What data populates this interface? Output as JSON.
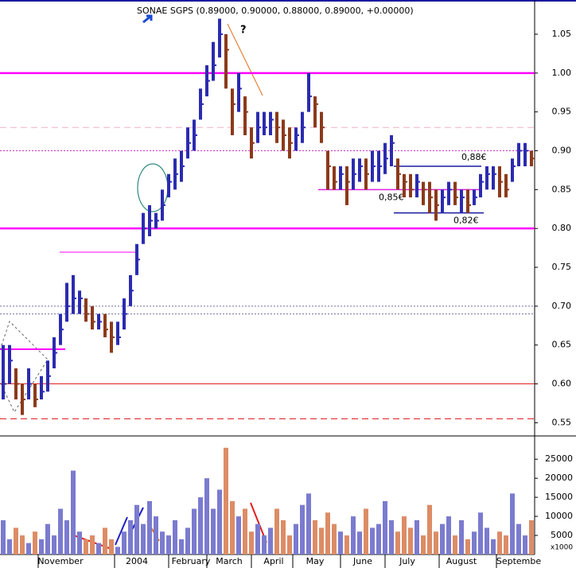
{
  "chart_data": [
    {
      "type": "hlc",
      "title": "SONAE SGPS (0.89000, 0.90000, 0.88000, 0.89000, +0.00000)",
      "ylim": [
        0.533,
        1.094
      ],
      "yticks": [
        0.55,
        0.6,
        0.65,
        0.7,
        0.75,
        0.8,
        0.85,
        0.9,
        0.95,
        1.05,
        {
          "value": 1.0,
          "label": "1.00"
        },
        {
          "value": 0.6,
          "label": "0.60"
        },
        {
          "value": 0.7,
          "label": "0.70"
        },
        {
          "value": 0.8,
          "label": "0.80"
        },
        {
          "value": 0.9,
          "label": "0.90"
        }
      ],
      "up_color": "#2b2bb0",
      "down_color": "#8b3a1a",
      "high": [
        0.65,
        0.65,
        0.62,
        0.6,
        0.62,
        0.6,
        0.61,
        0.63,
        0.66,
        0.69,
        0.73,
        0.74,
        0.72,
        0.71,
        0.7,
        0.69,
        0.69,
        0.68,
        0.68,
        0.71,
        0.74,
        0.78,
        0.82,
        0.83,
        0.82,
        0.85,
        0.87,
        0.89,
        0.9,
        0.93,
        0.94,
        0.98,
        1.01,
        1.04,
        1.07,
        1.05,
        0.98,
        1.0,
        0.97,
        0.93,
        0.95,
        0.95,
        0.95,
        0.95,
        0.94,
        0.93,
        0.93,
        0.95,
        1.0,
        0.97,
        0.95,
        0.9,
        0.88,
        0.88,
        0.88,
        0.89,
        0.89,
        0.89,
        0.9,
        0.9,
        0.91,
        0.92,
        0.89,
        0.87,
        0.87,
        0.87,
        0.86,
        0.86,
        0.85,
        0.85,
        0.86,
        0.86,
        0.85,
        0.85,
        0.85,
        0.87,
        0.88,
        0.88,
        0.88,
        0.87,
        0.89,
        0.91,
        0.91,
        0.9
      ],
      "low": [
        0.58,
        0.6,
        0.58,
        0.56,
        0.58,
        0.57,
        0.58,
        0.59,
        0.62,
        0.65,
        0.68,
        0.69,
        0.69,
        0.68,
        0.67,
        0.67,
        0.66,
        0.64,
        0.65,
        0.67,
        0.7,
        0.74,
        0.78,
        0.79,
        0.8,
        0.81,
        0.84,
        0.85,
        0.86,
        0.89,
        0.9,
        0.94,
        0.97,
        0.99,
        1.02,
        0.98,
        0.92,
        0.95,
        0.92,
        0.89,
        0.91,
        0.92,
        0.92,
        0.91,
        0.9,
        0.89,
        0.9,
        0.91,
        0.95,
        0.93,
        0.91,
        0.85,
        0.85,
        0.85,
        0.83,
        0.85,
        0.86,
        0.85,
        0.86,
        0.86,
        0.87,
        0.88,
        0.85,
        0.84,
        0.84,
        0.84,
        0.83,
        0.82,
        0.81,
        0.82,
        0.83,
        0.83,
        0.82,
        0.82,
        0.83,
        0.84,
        0.85,
        0.85,
        0.84,
        0.84,
        0.86,
        0.88,
        0.88,
        0.88
      ],
      "close": [
        0.6,
        0.63,
        0.6,
        0.58,
        0.6,
        0.58,
        0.59,
        0.61,
        0.64,
        0.67,
        0.7,
        0.71,
        0.71,
        0.69,
        0.68,
        0.68,
        0.67,
        0.66,
        0.66,
        0.69,
        0.72,
        0.76,
        0.8,
        0.81,
        0.81,
        0.83,
        0.86,
        0.87,
        0.88,
        0.91,
        0.92,
        0.96,
        0.99,
        1.01,
        1.05,
        1.03,
        0.96,
        0.98,
        0.95,
        0.91,
        0.93,
        0.93,
        0.94,
        0.93,
        0.92,
        0.91,
        0.92,
        0.93,
        0.97,
        0.96,
        0.93,
        0.88,
        0.86,
        0.87,
        0.86,
        0.87,
        0.88,
        0.87,
        0.88,
        0.88,
        0.89,
        0.91,
        0.87,
        0.86,
        0.85,
        0.86,
        0.85,
        0.84,
        0.83,
        0.84,
        0.85,
        0.84,
        0.84,
        0.83,
        0.84,
        0.86,
        0.87,
        0.87,
        0.86,
        0.85,
        0.88,
        0.9,
        0.9,
        0.89
      ],
      "levels": [
        {
          "value": 1.0,
          "color": "#ff00ff",
          "style": "thick"
        },
        {
          "value": 0.8,
          "color": "#ff00ff",
          "style": "thick"
        },
        {
          "value": 0.93,
          "color": "#f4b0c8",
          "style": "dashed"
        },
        {
          "value": 0.9,
          "color": "#cc33cc",
          "style": "dotted"
        },
        {
          "value": 0.7,
          "color": "#7070a0",
          "style": "dotted"
        },
        {
          "value": 0.69,
          "color": "#7070a0",
          "style": "dotted"
        },
        {
          "value": 0.6,
          "color": "#e02020",
          "style": "solid"
        },
        {
          "value": 0.555,
          "color": "#e02020",
          "style": "dashed"
        }
      ],
      "annotations": [
        {
          "label": "0,88€",
          "value": 0.88,
          "color": "#1a1aa0"
        },
        {
          "label": "0,85€",
          "value": 0.85,
          "color": "#e020e0"
        },
        {
          "label": "0,82€",
          "value": 0.82,
          "color": "#1a1aa0"
        },
        {
          "label": "?",
          "value": 1.055,
          "color": "#ff6a1a"
        }
      ]
    },
    {
      "type": "bar",
      "y_unit_label": "x1000",
      "ylim": [
        0,
        31100
      ],
      "yticks": [
        5000,
        10000,
        15000,
        20000,
        25000
      ],
      "up_color": "#7b7bcf",
      "down_color": "#dc8c66",
      "values": [
        9000,
        4000,
        7000,
        5000,
        3000,
        6000,
        4000,
        8000,
        5000,
        12000,
        9000,
        22000,
        6000,
        4000,
        5000,
        3000,
        7000,
        4000,
        2000,
        6000,
        9000,
        13000,
        8000,
        14000,
        10000,
        6000,
        5000,
        9000,
        4000,
        7000,
        12000,
        15000,
        20000,
        12000,
        17000,
        28000,
        14000,
        10000,
        12000,
        6000,
        8000,
        5000,
        7000,
        12000,
        9000,
        5000,
        8000,
        13000,
        16000,
        9000,
        7000,
        11000,
        8000,
        6000,
        5000,
        10000,
        6000,
        12000,
        7000,
        8000,
        14000,
        9000,
        6000,
        10000,
        7000,
        9000,
        5000,
        13000,
        6000,
        8000,
        10000,
        5000,
        9000,
        4000,
        6000,
        11000,
        7000,
        4000,
        6000,
        5000,
        16000,
        8000,
        5000,
        9000
      ],
      "xticks": [
        {
          "value": 9,
          "label": "November"
        },
        {
          "value": 21,
          "label": "2004"
        },
        {
          "value": 29.5,
          "label": "February"
        },
        {
          "value": 35.5,
          "label": "March"
        },
        {
          "value": 42.5,
          "label": "April"
        },
        {
          "value": 49,
          "label": "May"
        },
        {
          "value": 56.5,
          "label": "June"
        },
        {
          "value": 63.5,
          "label": "July"
        },
        {
          "value": 72,
          "label": "August"
        },
        {
          "value": 81,
          "label": "Septembe"
        }
      ]
    }
  ]
}
